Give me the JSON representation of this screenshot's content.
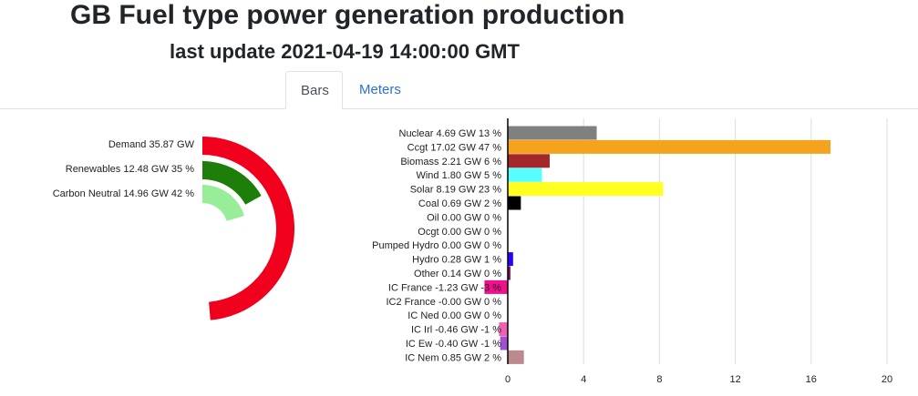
{
  "header": {
    "title": "GB Fuel type power generation production",
    "subtitle": "last update 2021-04-19 14:00:00 GMT"
  },
  "tabs": [
    {
      "label": "Bars",
      "active": true
    },
    {
      "label": "Meters",
      "active": false
    }
  ],
  "chart_data": [
    {
      "type": "radial-bar",
      "series": [
        {
          "label": "Demand 35.87 GW",
          "value": 35.87,
          "color": "#f0001c"
        },
        {
          "label": "Renewables 12.48 GW 35 %",
          "value": 12.48,
          "percent": 35,
          "color": "#1e7e0a"
        },
        {
          "label": "Carbon Neutral 14.96 GW 42 %",
          "value": 14.96,
          "percent": 42,
          "color": "#98ee98"
        }
      ]
    },
    {
      "type": "bar",
      "orientation": "horizontal",
      "xlim": [
        -1.5,
        21
      ],
      "xticks": [
        "0",
        "4",
        "8",
        "12",
        "16",
        "20"
      ],
      "grid": true,
      "categories": [
        "Nuclear 4.69 GW 13 %",
        "Ccgt 17.02 GW 47 %",
        "Biomass 2.21 GW 6 %",
        "Wind 1.80 GW 5 %",
        "Solar 8.19 GW 23 %",
        "Coal 0.69 GW 2 %",
        "Oil 0.00 GW 0 %",
        "Ocgt 0.00 GW 0 %",
        "Pumped Hydro 0.00 GW 0 %",
        "Hydro 0.28 GW 1 %",
        "Other 0.14 GW 0 %",
        "IC France -1.23 GW -3 %",
        "IC2 France -0.00 GW 0 %",
        "IC Ned 0.00 GW 0 %",
        "IC Irl -0.46 GW -1 %",
        "IC Ew -0.40 GW -1 %",
        "IC Nem 0.85 GW 2 %"
      ],
      "values": [
        4.69,
        17.02,
        2.21,
        1.8,
        8.19,
        0.69,
        0,
        0,
        0,
        0.28,
        0.14,
        -1.23,
        0,
        0,
        -0.46,
        -0.4,
        0.85
      ],
      "colors": [
        "#808080",
        "#f5a31c",
        "#a3262a",
        "#55ffff",
        "#ffff22",
        "#000000",
        "#888888",
        "#888888",
        "#888888",
        "#2a00ff",
        "#7a1060",
        "#f0108a",
        "#888888",
        "#888888",
        "#f060b0",
        "#a050d0",
        "#bc8a8e"
      ]
    }
  ]
}
